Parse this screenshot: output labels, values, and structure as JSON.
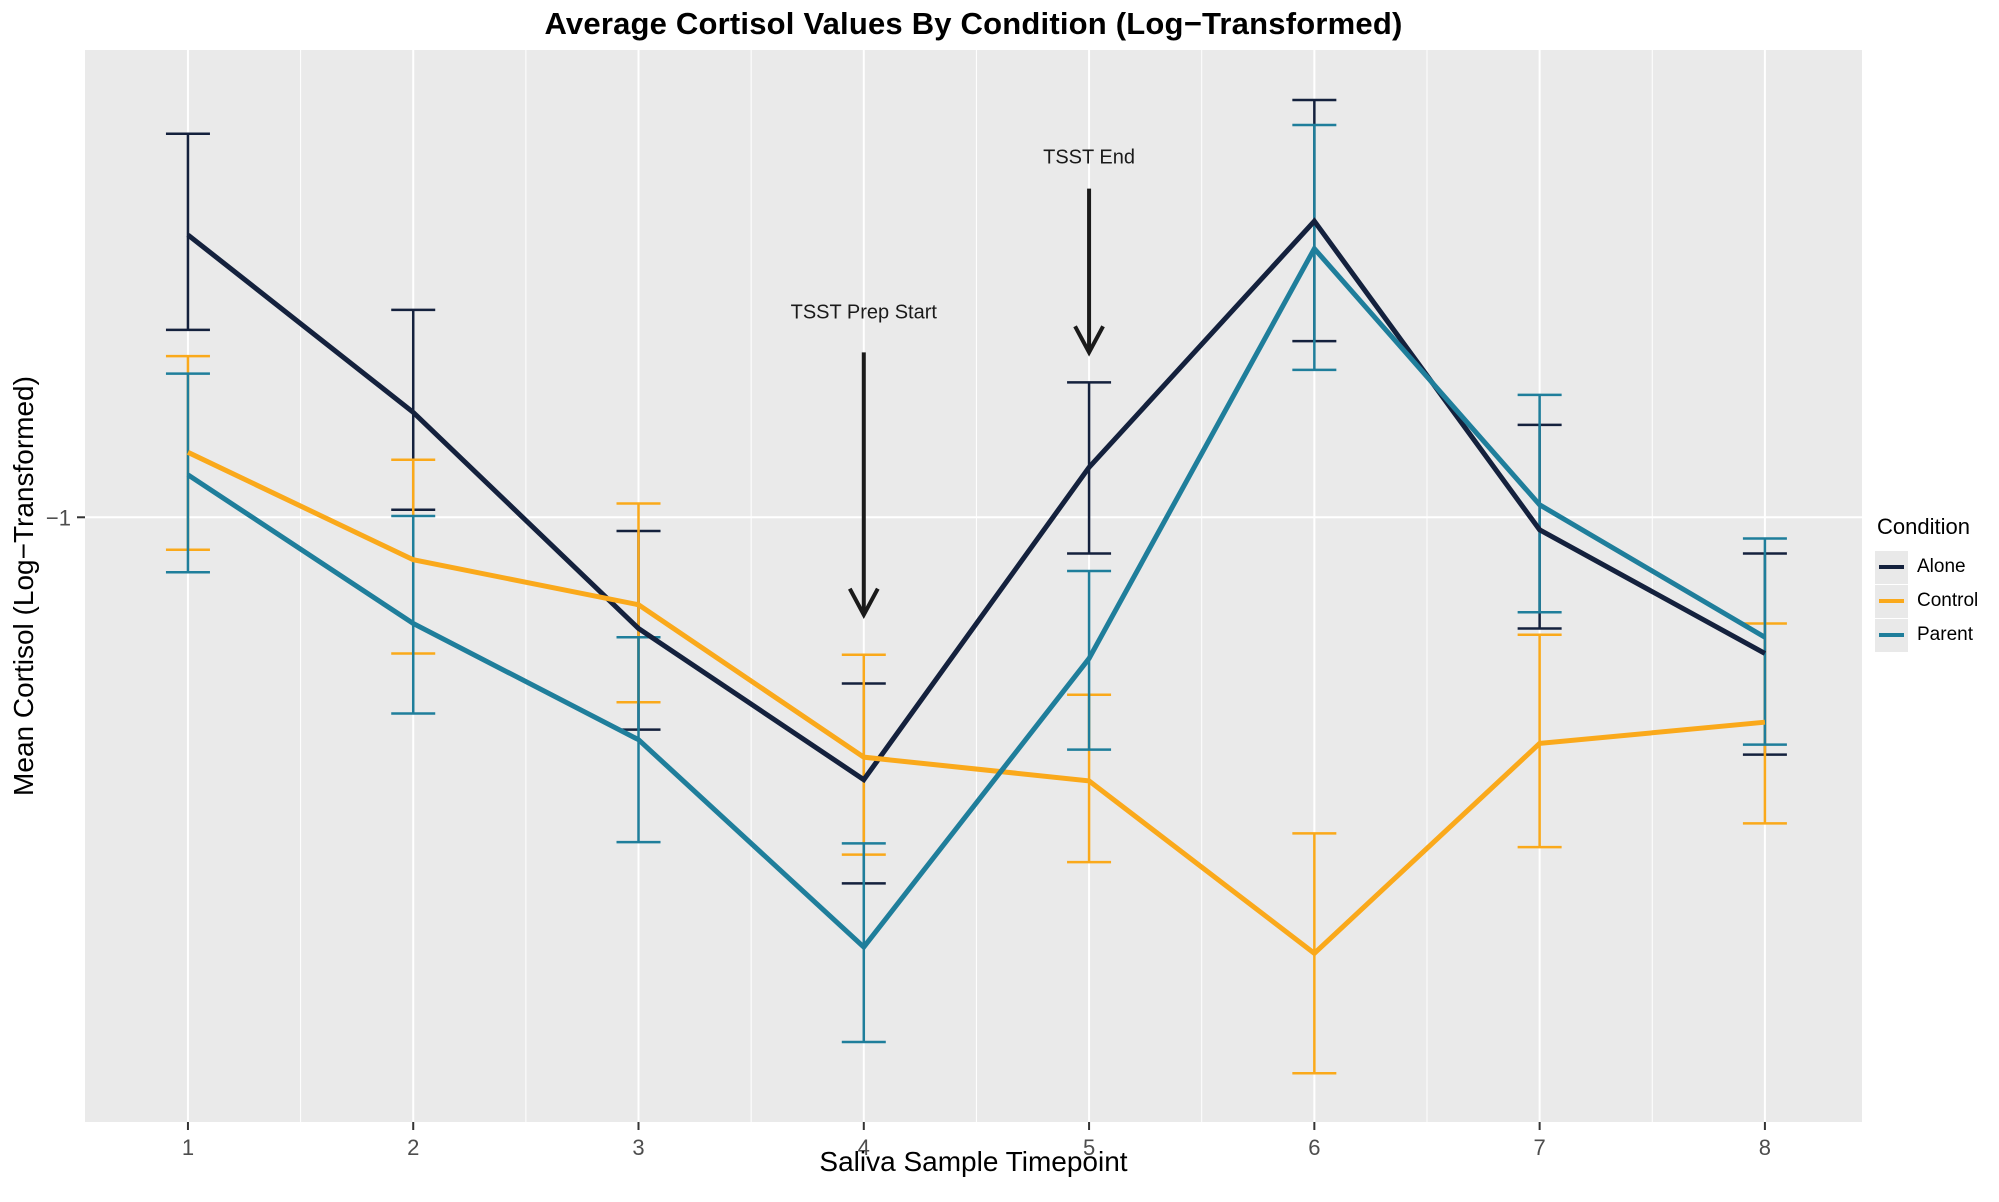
{
  "chart_data": {
    "type": "line",
    "title": "Average Cortisol Values By Condition (Log−Transformed)",
    "xlabel": "Saliva Sample Timepoint",
    "ylabel": "Mean Cortisol (Log−Transformed)",
    "x": [
      1,
      2,
      3,
      4,
      5,
      6,
      7,
      8
    ],
    "x_tick_labels": [
      "1",
      "2",
      "3",
      "4",
      "5",
      "6",
      "7",
      "8"
    ],
    "xlim": [
      0.543,
      8.431
    ],
    "ylim": [
      -1.484,
      -0.626
    ],
    "y_breaks": [
      -1
    ],
    "y_tick_labels": [
      "−1"
    ],
    "x_minor_breaks": [
      1.5,
      2.5,
      3.5,
      4.5,
      5.5,
      6.5,
      7.5
    ],
    "grid": "on",
    "legend_position": "right",
    "panel_bg": "#EAEAEA",
    "grid_color": "#FFFFFF",
    "tick_color": "#333333",
    "tick_label_color": "#4D4D4D",
    "annotation_color": "#1A1A1A",
    "legend": {
      "title": "Condition"
    },
    "series": [
      {
        "name": "Alone",
        "color": "#14213D",
        "values": [
          -0.774,
          -0.916,
          -1.089,
          -1.21,
          -0.96,
          -0.763,
          -1.01,
          -1.109
        ],
        "err_high": [
          -0.693,
          -0.834,
          -1.011,
          -1.133,
          -0.892,
          -0.666,
          -0.926,
          -1.029
        ],
        "err_low": [
          -0.85,
          -0.994,
          -1.17,
          -1.293,
          -1.029,
          -0.859,
          -1.089,
          -1.19
        ]
      },
      {
        "name": "Control",
        "color": "#FAA91B",
        "values": [
          -0.948,
          -1.034,
          -1.07,
          -1.192,
          -1.211,
          -1.349,
          -1.181,
          -1.164
        ],
        "err_high": [
          -0.871,
          -0.954,
          -0.989,
          -1.11,
          -1.142,
          -1.253,
          -1.094,
          -1.085
        ],
        "err_low": [
          -1.026,
          -1.109,
          -1.148,
          -1.27,
          -1.276,
          -1.445,
          -1.264,
          -1.245
        ]
      },
      {
        "name": "Parent",
        "color": "#1F7E9B",
        "values": [
          -0.966,
          -1.085,
          -1.178,
          -1.344,
          -1.113,
          -0.785,
          -0.99,
          -1.096
        ],
        "err_high": [
          -0.885,
          -0.999,
          -1.096,
          -1.261,
          -1.043,
          -0.686,
          -0.902,
          -1.017
        ],
        "err_low": [
          -1.044,
          -1.157,
          -1.26,
          -1.42,
          -1.186,
          -0.882,
          -1.076,
          -1.182
        ]
      }
    ],
    "annotations": [
      {
        "label": "TSST Prep Start",
        "x": 4,
        "label_y": -0.841,
        "arrow_from_y": -0.868,
        "arrow_to_y": -1.078
      },
      {
        "label": "TSST End",
        "x": 5,
        "label_y": -0.717,
        "arrow_from_y": -0.737,
        "arrow_to_y": -0.868
      }
    ]
  }
}
